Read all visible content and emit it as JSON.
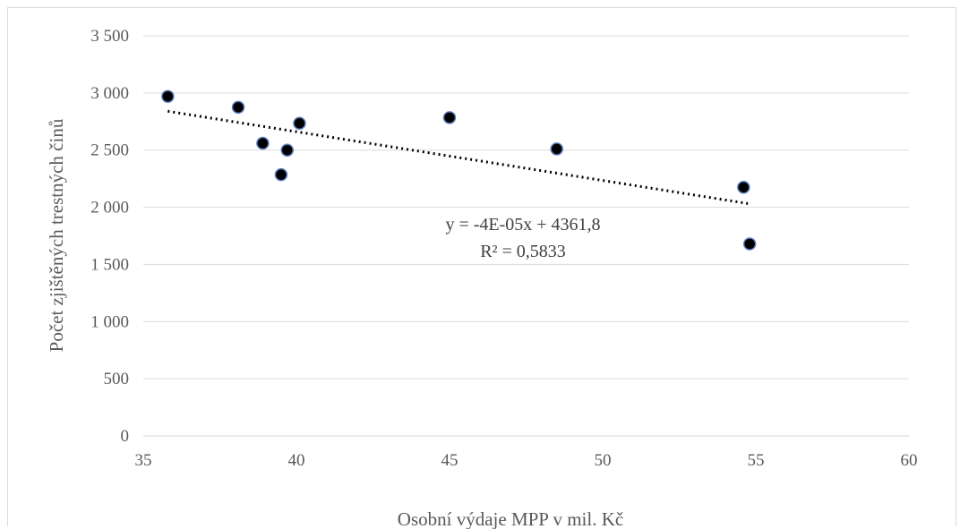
{
  "chart_data": {
    "type": "scatter",
    "title": "",
    "xlabel": "Osobní výdaje MPP v mil. Kč",
    "ylabel": "Počet zjištěných trestných činů",
    "xlim": [
      35,
      60
    ],
    "ylim": [
      0,
      3500
    ],
    "x_ticks": [
      35,
      40,
      45,
      50,
      55,
      60
    ],
    "x_tick_labels": [
      "35",
      "40",
      "45",
      "50",
      "55",
      "60"
    ],
    "y_ticks": [
      0,
      500,
      1000,
      1500,
      2000,
      2500,
      3000,
      3500
    ],
    "y_tick_labels": [
      "0",
      "500",
      "1 000",
      "1 500",
      "2 000",
      "2 500",
      "3 000",
      "3 500"
    ],
    "grid": "horizontal",
    "points": [
      {
        "x": 35.8,
        "y": 2970
      },
      {
        "x": 38.1,
        "y": 2875
      },
      {
        "x": 38.9,
        "y": 2560
      },
      {
        "x": 39.5,
        "y": 2285
      },
      {
        "x": 39.7,
        "y": 2500
      },
      {
        "x": 40.1,
        "y": 2735
      },
      {
        "x": 45.0,
        "y": 2785
      },
      {
        "x": 48.5,
        "y": 2510
      },
      {
        "x": 54.6,
        "y": 2175
      },
      {
        "x": 54.8,
        "y": 1680
      }
    ],
    "trendline": {
      "type": "linear",
      "x": [
        35.8,
        54.8
      ],
      "y": [
        2840,
        2030
      ],
      "equation": "y = -4E-05x + 4361,8",
      "r_squared": "R² = 0,5833"
    },
    "colors": {
      "marker": "#000000",
      "marker_edge": "#5b7fbf",
      "trendline": "#000000",
      "grid": "#d9d9d9",
      "text": "#595959"
    }
  }
}
